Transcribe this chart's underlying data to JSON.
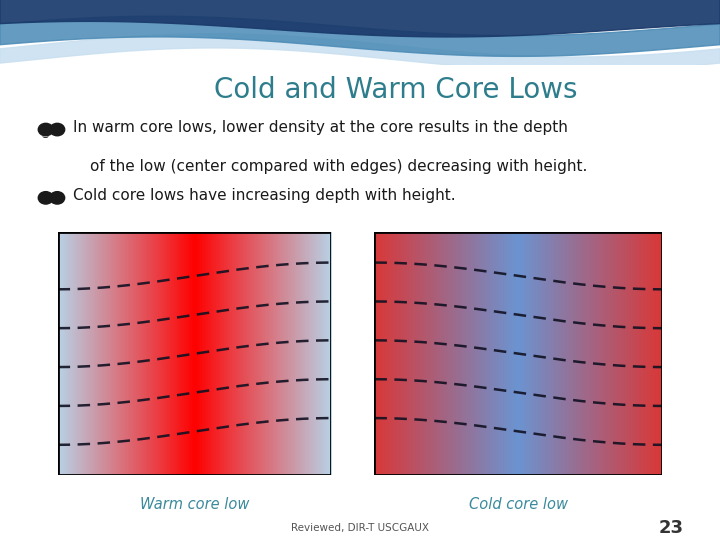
{
  "title": "Cold and Warm Core Lows",
  "title_color": "#2E7D8C",
  "bg_color": "#FFFFFF",
  "bullet1_line1": "In warm core lows, lower density at the core results in the depth",
  "bullet1_line2": "of the low (center compared with edges) decreasing with height.",
  "bullet2": "Cold core lows have increasing depth with height.",
  "text_color": "#1a1a1a",
  "warm_label": "Warm core low",
  "cold_label": "Cold core low",
  "footnote": "Reviewed, DIR-T USCGAUX",
  "page_num": "23",
  "num_lines": 5,
  "line_color": "#111122",
  "label_color": "#3a8a9c"
}
